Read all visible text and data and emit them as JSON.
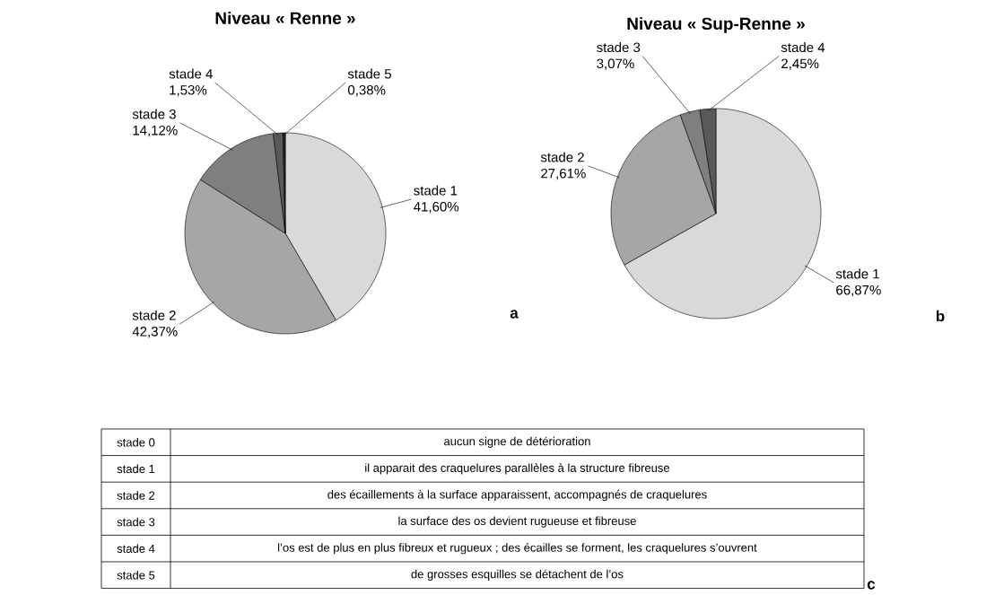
{
  "chart_data": [
    {
      "type": "pie",
      "title": "Niveau « Renne »",
      "categories": [
        "stade 1",
        "stade 2",
        "stade 3",
        "stade 4",
        "stade 5"
      ],
      "values": [
        41.6,
        42.37,
        14.12,
        1.53,
        0.38
      ],
      "value_labels": [
        "41,60%",
        "42,37%",
        "14,12%",
        "1,53%",
        "0,38%"
      ],
      "colors": [
        "#d9d9d9",
        "#a6a6a6",
        "#7f7f7f",
        "#595959",
        "#262626"
      ],
      "annotations": [
        "a"
      ]
    },
    {
      "type": "pie",
      "title": "Niveau « Sup-Renne »",
      "categories": [
        "stade 1",
        "stade 2",
        "stade 3",
        "stade 4"
      ],
      "values": [
        66.87,
        27.61,
        3.07,
        2.45
      ],
      "value_labels": [
        "66,87%",
        "27,61%",
        "3,07%",
        "2,45%"
      ],
      "colors": [
        "#d9d9d9",
        "#a6a6a6",
        "#7f7f7f",
        "#595959"
      ],
      "annotations": [
        "b"
      ]
    },
    {
      "type": "other",
      "categories": [
        "stade 0",
        "stade 1",
        "stade 2",
        "stade 3",
        "stade 4",
        "stade 5"
      ],
      "annotations": [
        "aucun signe de détérioration",
        "il apparait des craquelures parallèles à la structure fibreuse",
        "des écaillements à la surface apparaissent, accompagnés de craquelures",
        "la surface des os devient rugueuse et fibreuse",
        "l’os est de plus en plus fibreux et rugueux ; des écailles se forment, les craquelures s’ouvrent",
        "de grosses esquilles se détachent de l’os",
        "c"
      ]
    }
  ]
}
